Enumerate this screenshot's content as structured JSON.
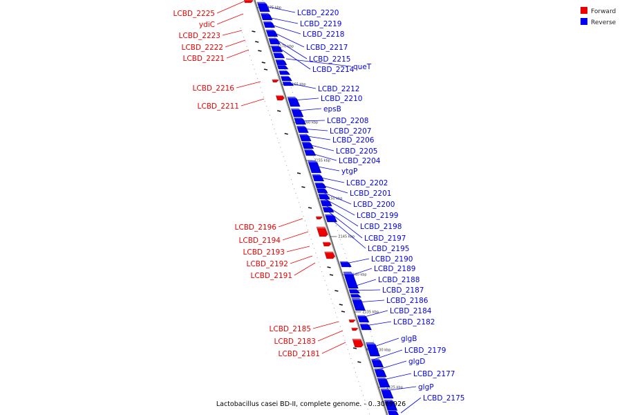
{
  "title": "Lactobacillus casei BD-II, complete genome. - 0..3069926",
  "legend": [
    {
      "label": "Forward",
      "color": "#ee0000"
    },
    {
      "label": "Reverse",
      "color": "#0000ee"
    }
  ],
  "colors": {
    "forward": "#ee0000",
    "reverse": "#0000ee",
    "backbone": "#888888"
  },
  "ticks": [
    "2175 kbp",
    "2170 kbp",
    "2165 kbp",
    "2160 kbp",
    "2155 kbp",
    "2150 kbp",
    "2145 kbp",
    "2140 kbp",
    "2135 kbp",
    "2130 kbp",
    "2125 kbp"
  ],
  "forward_labels": [
    "LCBD_2225",
    "ydiC",
    "LCBD_2223",
    "LCBD_2222",
    "LCBD_2221",
    "LCBD_2216",
    "LCBD_2211",
    "LCBD_2196",
    "LCBD_2194",
    "LCBD_2193",
    "LCBD_2192",
    "LCBD_2191",
    "LCBD_2185",
    "LCBD_2183",
    "LCBD_2181"
  ],
  "reverse_labels": [
    "LCBD_2220",
    "LCBD_2219",
    "LCBD_2218",
    "LCBD_2217",
    "LCBD_2215",
    "LCBD_2214",
    "queT",
    "LCBD_2212",
    "LCBD_2210",
    "epsB",
    "LCBD_2208",
    "LCBD_2207",
    "LCBD_2206",
    "LCBD_2205",
    "LCBD_2204",
    "ytgP",
    "LCBD_2202",
    "LCBD_2201",
    "LCBD_2200",
    "LCBD_2199",
    "LCBD_2198",
    "LCBD_2197",
    "LCBD_2195",
    "LCBD_2190",
    "LCBD_2189",
    "LCBD_2188",
    "LCBD_2187",
    "LCBD_2186",
    "LCBD_2184",
    "LCBD_2182",
    "glgB",
    "LCBD_2179",
    "glgD",
    "LCBD_2177",
    "glgP",
    "LCBD_2175"
  ]
}
